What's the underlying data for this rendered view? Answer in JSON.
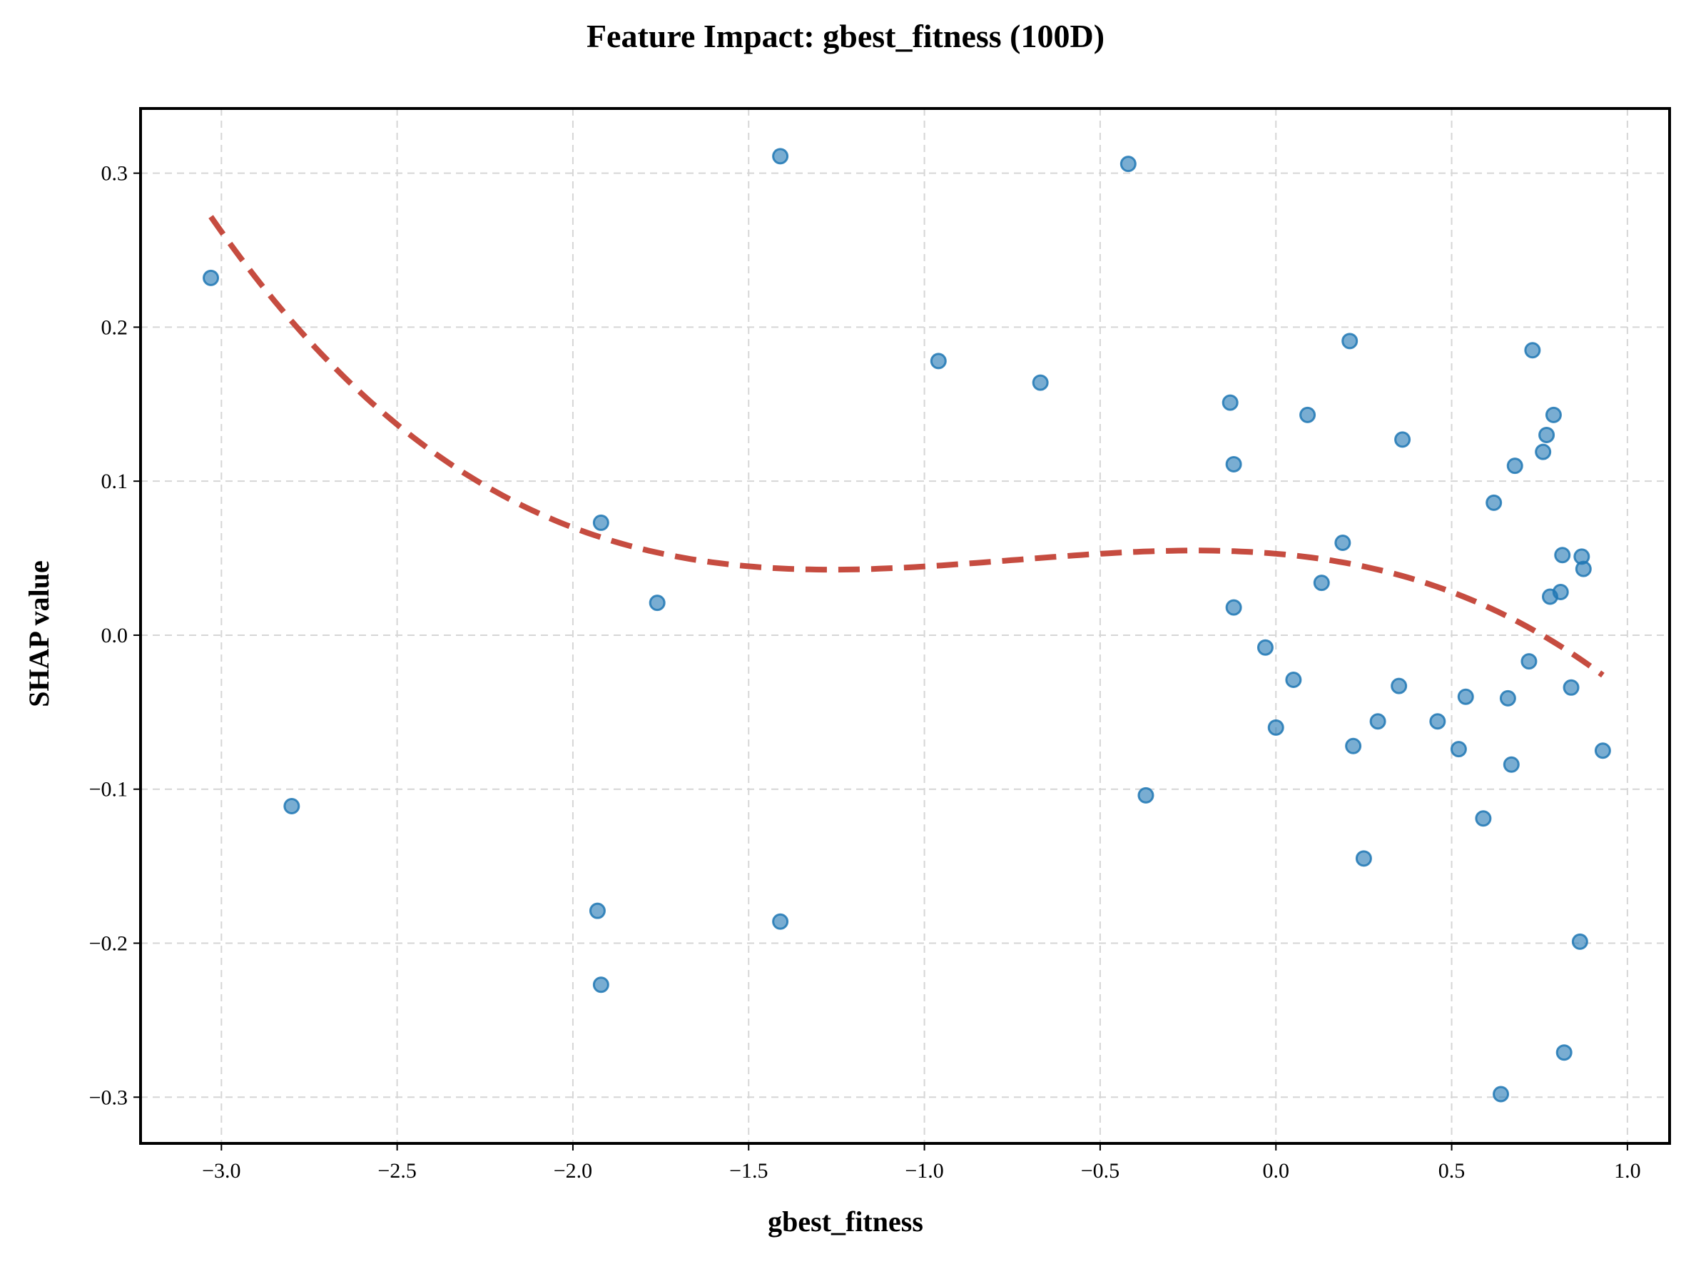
{
  "chart_data": {
    "type": "scatter",
    "title": "Feature Impact: gbest_fitness (100D)",
    "xlabel": "gbest_fitness",
    "ylabel": "SHAP value",
    "xlim": [
      -3.23,
      1.12
    ],
    "ylim": [
      -0.33,
      0.342
    ],
    "x_ticks": [
      -3.0,
      -2.5,
      -2.0,
      -1.5,
      -1.0,
      -0.5,
      0.0,
      0.5,
      1.0
    ],
    "x_tick_labels": [
      "−3.0",
      "−2.5",
      "−2.0",
      "−1.5",
      "−1.0",
      "−0.5",
      "0.0",
      "0.5",
      "1.0"
    ],
    "y_ticks": [
      -0.3,
      -0.2,
      -0.1,
      0.0,
      0.1,
      0.2,
      0.3
    ],
    "y_tick_labels": [
      "−0.3",
      "−0.2",
      "−0.1",
      "0.0",
      "0.1",
      "0.2",
      "0.3"
    ],
    "grid": true,
    "colors": {
      "points": "#1f77b4",
      "trend": "#c0392b"
    },
    "series": [
      {
        "kind": "points",
        "x": [
          -3.03,
          -2.8,
          -1.92,
          -1.93,
          -1.92,
          -1.76,
          -1.41,
          -1.41,
          -0.96,
          -0.67,
          -0.42,
          -0.37,
          -0.13,
          -0.12,
          -0.12,
          -0.03,
          0.0,
          0.05,
          0.09,
          0.13,
          0.19,
          0.21,
          0.22,
          0.25,
          0.29,
          0.35,
          0.36,
          0.46,
          0.52,
          0.54,
          0.59,
          0.62,
          0.64,
          0.66,
          0.67,
          0.68,
          0.72,
          0.73,
          0.76,
          0.77,
          0.78,
          0.79,
          0.81,
          0.815,
          0.82,
          0.84,
          0.865,
          0.87,
          0.875,
          0.93
        ],
        "y": [
          0.232,
          -0.111,
          0.073,
          -0.179,
          -0.227,
          0.021,
          0.311,
          -0.186,
          0.178,
          0.164,
          0.306,
          -0.104,
          0.151,
          0.111,
          0.018,
          -0.008,
          -0.06,
          -0.029,
          0.143,
          0.034,
          0.06,
          0.191,
          -0.072,
          -0.145,
          -0.056,
          -0.033,
          0.127,
          -0.056,
          -0.074,
          -0.04,
          -0.119,
          0.086,
          -0.298,
          -0.041,
          -0.084,
          0.11,
          -0.017,
          0.185,
          0.119,
          0.13,
          0.025,
          0.143,
          0.028,
          0.052,
          -0.271,
          -0.034,
          -0.199,
          0.051,
          0.043,
          -0.075
        ]
      },
      {
        "kind": "trend",
        "polynomial_coefficients": [
          0.0529,
          -0.0193,
          -0.0498,
          -0.0222
        ],
        "x_range": [
          -3.03,
          0.93
        ]
      }
    ]
  }
}
